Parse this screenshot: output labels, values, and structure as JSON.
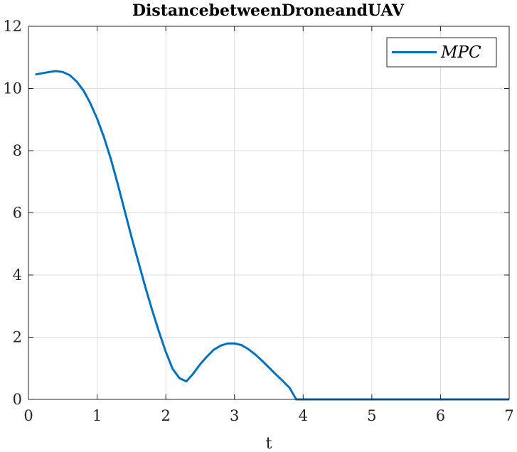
{
  "chart_data": {
    "type": "line",
    "title": "DistancebetweenDroneandUAV",
    "xlabel": "t",
    "ylabel": "",
    "xlim": [
      0,
      7
    ],
    "ylim": [
      0,
      12
    ],
    "xticks": [
      "0",
      "1",
      "2",
      "3",
      "4",
      "5",
      "6",
      "7"
    ],
    "yticks": [
      "0",
      "2",
      "4",
      "6",
      "8",
      "10",
      "12"
    ],
    "grid": true,
    "legend_position": "top-right",
    "series": [
      {
        "name": "MPC",
        "color": "#0072BD",
        "x": [
          0.1,
          0.2,
          0.3,
          0.4,
          0.5,
          0.6,
          0.7,
          0.8,
          0.9,
          1.0,
          1.1,
          1.2,
          1.3,
          1.4,
          1.5,
          1.6,
          1.7,
          1.8,
          1.9,
          2.0,
          2.1,
          2.2,
          2.3,
          2.4,
          2.5,
          2.6,
          2.7,
          2.8,
          2.9,
          3.0,
          3.1,
          3.2,
          3.3,
          3.4,
          3.5,
          3.6,
          3.7,
          3.8,
          3.9,
          4.0,
          4.5,
          5.0,
          5.5,
          6.0,
          6.5,
          7.0
        ],
        "y": [
          10.45,
          10.49,
          10.53,
          10.56,
          10.53,
          10.43,
          10.23,
          9.94,
          9.53,
          9.03,
          8.43,
          7.73,
          6.93,
          6.08,
          5.23,
          4.43,
          3.63,
          2.88,
          2.18,
          1.53,
          0.98,
          0.68,
          0.58,
          0.83,
          1.13,
          1.38,
          1.6,
          1.73,
          1.8,
          1.8,
          1.75,
          1.62,
          1.45,
          1.25,
          1.03,
          0.81,
          0.6,
          0.38,
          0.0,
          0.0,
          0.0,
          0.0,
          0.0,
          0.0,
          0.0,
          0.0
        ]
      }
    ]
  }
}
